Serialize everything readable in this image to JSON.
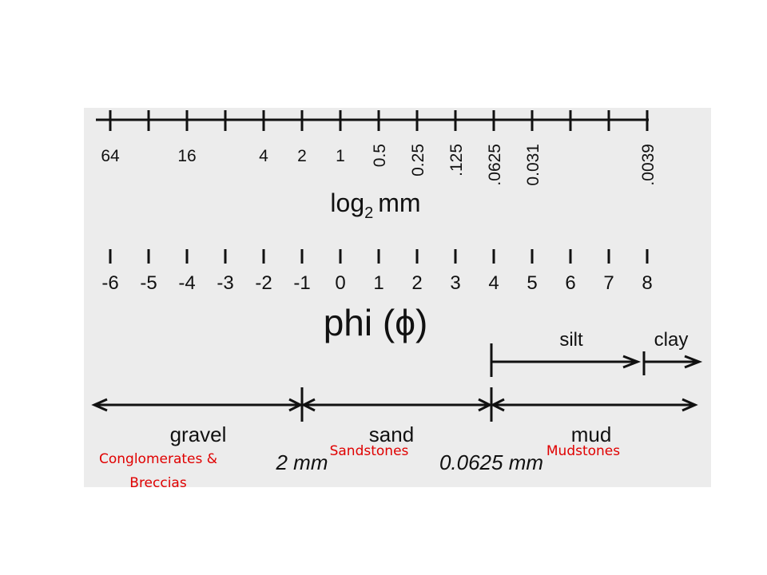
{
  "scale": {
    "mm_labels": [
      "64",
      "16",
      "4",
      "2",
      "1",
      "0.5",
      "0.25",
      ".125",
      ".0625",
      "0.031",
      ".0039"
    ],
    "mm_title": {
      "base": "log",
      "sub": "2",
      "unit": "mm"
    },
    "phi_labels": [
      "-6",
      "-5",
      "-4",
      "-3",
      "-2",
      "-1",
      "0",
      "1",
      "2",
      "3",
      "4",
      "5",
      "6",
      "7",
      "8"
    ],
    "phi_title": "phi (ϕ)"
  },
  "classes": {
    "silt": "silt",
    "clay": "clay",
    "gravel": "gravel",
    "sand": "sand",
    "mud": "mud",
    "boundaries": [
      "2 mm",
      "0.0625 mm"
    ]
  },
  "rocks": {
    "conglomerates": [
      "Conglomerates &",
      "Breccias"
    ],
    "sandstones": "Sandstones",
    "mudstones": "Mudstones"
  }
}
